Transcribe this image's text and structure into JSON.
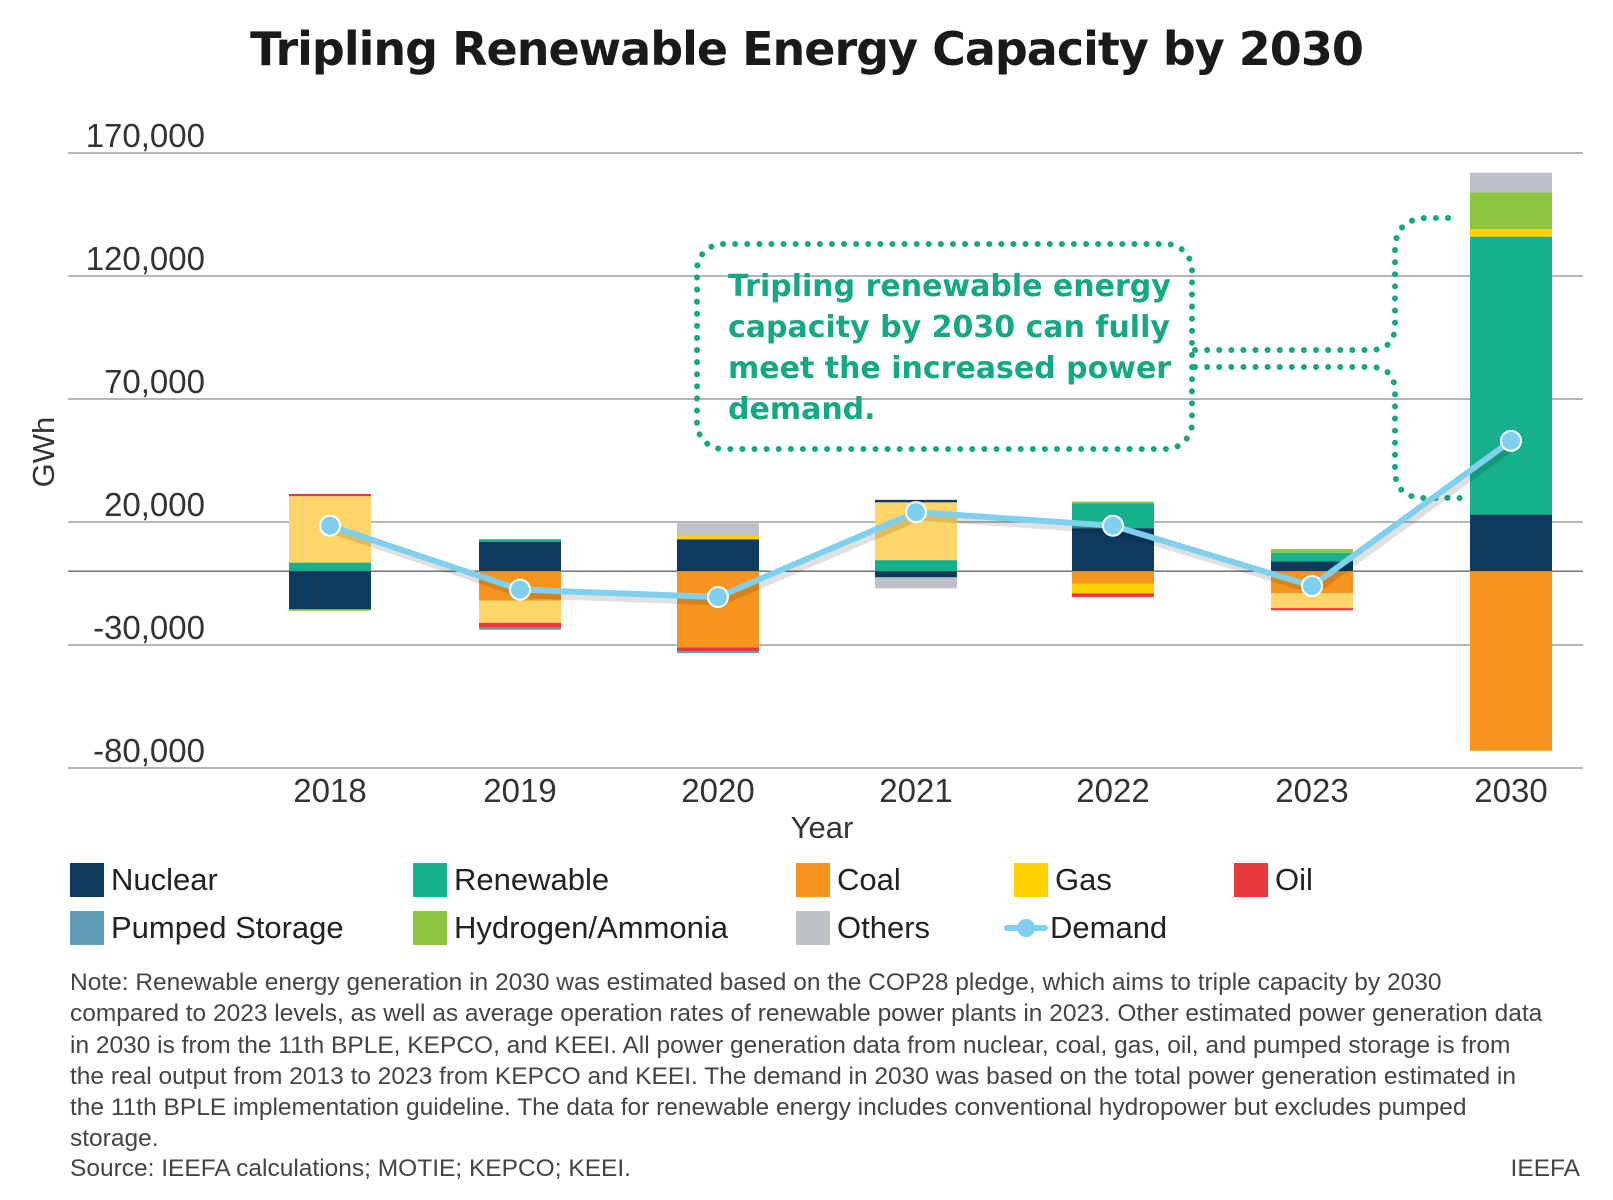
{
  "title": "Tripling Renewable Energy Capacity by 2030",
  "callout": "Tripling renewable energy capacity by 2030 can fully meet the increased power demand.",
  "colors": {
    "Nuclear": "#0e3a5f",
    "Renewable": "#16b08c",
    "Coal": "#f7941d",
    "Gas": "#ffd200",
    "Oil": "#e8393d",
    "Pumped Storage": "#5e9cb6",
    "Hydrogen/Ammonia": "#8cc63f",
    "Others": "#bcc2c8",
    "Demand": "#7fd0ee",
    "LightGas": "#fdd568",
    "callout": "#14a883"
  },
  "legend": [
    {
      "label": "Nuclear",
      "color": "#0e3a5f"
    },
    {
      "label": "Renewable",
      "color": "#16b08c"
    },
    {
      "label": "Coal",
      "color": "#f7941d"
    },
    {
      "label": "Gas",
      "color": "#ffd200"
    },
    {
      "label": "Oil",
      "color": "#e8393d"
    },
    {
      "label": "Pumped Storage",
      "color": "#5e9cb6"
    },
    {
      "label": "Hydrogen/Ammonia",
      "color": "#8cc63f"
    },
    {
      "label": "Others",
      "color": "#bcc2c8"
    },
    {
      "label": "Demand",
      "color": "#7fd0ee"
    }
  ],
  "note": "Note: Renewable energy generation in 2030 was estimated based on the COP28 pledge, which aims to triple capacity by 2030 compared to 2023 levels, as well as average operation rates of renewable power plants in 2023. Other estimated power generation data in 2030 is from the 11th BPLE, KEPCO, and KEEI. All power generation data from nuclear, coal, gas, oil, and pumped storage is from the real output from 2013 to 2023 from KEPCO and KEEI. The demand in 2030 was based on the total power generation estimated in the 11th BPLE implementation guideline. The data for renewable energy includes conventional hydropower but excludes pumped storage.",
  "source": "Source: IEEFA calculations; MOTIE; KEPCO; KEEI.",
  "brand": "IEEFA",
  "chart_data": {
    "type": "bar",
    "stacked": true,
    "title": "Tripling Renewable Energy Capacity by 2030",
    "xlabel": "Year",
    "ylabel": "GWh",
    "ylim": [
      -80000,
      170000
    ],
    "yticks": [
      "170,000",
      "120,000",
      "70,000",
      "20,000",
      "-30,000",
      "-80,000"
    ],
    "ytick_values": [
      170000,
      120000,
      70000,
      20000,
      -30000,
      -80000
    ],
    "grid": true,
    "legend_position": "bottom",
    "categories": [
      "2018",
      "2019",
      "2020",
      "2021",
      "2022",
      "2023",
      "2030"
    ],
    "stacks": [
      {
        "year": "2018",
        "segments": [
          {
            "series": "Renewable",
            "value": 3500
          },
          {
            "series": "Gas",
            "value": 27000
          },
          {
            "series": "Oil",
            "value": 900
          },
          {
            "series": "Nuclear",
            "value": -15500
          },
          {
            "series": "Hydrogen/Ammonia",
            "value": -600
          }
        ]
      },
      {
        "year": "2019",
        "segments": [
          {
            "series": "Nuclear",
            "value": 12000
          },
          {
            "series": "Renewable",
            "value": 1000
          },
          {
            "series": "Coal",
            "value": -12000
          },
          {
            "series": "Gas",
            "value": -9000
          },
          {
            "series": "Oil",
            "value": -2000
          },
          {
            "series": "Pumped Storage",
            "value": -800
          }
        ]
      },
      {
        "year": "2020",
        "segments": [
          {
            "series": "Nuclear",
            "value": 13000
          },
          {
            "series": "Gas",
            "value": 1500
          },
          {
            "series": "Others",
            "value": 5000
          },
          {
            "series": "Coal",
            "value": -31000
          },
          {
            "series": "Oil",
            "value": -1500
          },
          {
            "series": "Pumped Storage",
            "value": -800
          }
        ]
      },
      {
        "year": "2021",
        "segments": [
          {
            "series": "Nuclear",
            "value": -2500
          },
          {
            "series": "Renewable",
            "value": 4500
          },
          {
            "series": "Gas",
            "value": 23500
          },
          {
            "series": "Nuclear",
            "value": 1000
          },
          {
            "series": "Others",
            "value": -4500
          }
        ]
      },
      {
        "year": "2022",
        "segments": [
          {
            "series": "Nuclear",
            "value": 17500
          },
          {
            "series": "Renewable",
            "value": 10000
          },
          {
            "series": "Hydrogen/Ammonia",
            "value": 800
          },
          {
            "series": "Coal",
            "value": -5000
          },
          {
            "series": "Gas",
            "value": -4000
          },
          {
            "series": "Oil",
            "value": -1500
          }
        ]
      },
      {
        "year": "2023",
        "segments": [
          {
            "series": "Nuclear",
            "value": 4000
          },
          {
            "series": "Renewable",
            "value": 3500
          },
          {
            "series": "Hydrogen/Ammonia",
            "value": 1500
          },
          {
            "series": "Coal",
            "value": -9000
          },
          {
            "series": "Gas",
            "value": -6000
          },
          {
            "series": "Oil",
            "value": -900
          }
        ]
      },
      {
        "year": "2030",
        "segments": [
          {
            "series": "Nuclear",
            "value": 23000
          },
          {
            "series": "Renewable",
            "value": 113000
          },
          {
            "series": "Gas",
            "value": 3000
          },
          {
            "series": "Hydrogen/Ammonia",
            "value": 15000
          },
          {
            "series": "Others",
            "value": 8000
          },
          {
            "series": "Coal",
            "value": -73000
          }
        ]
      }
    ],
    "demand": {
      "name": "Demand",
      "values": [
        18500,
        -7500,
        -10500,
        24000,
        18500,
        -6000,
        53000
      ]
    },
    "annotation": "Tripling renewable energy capacity by 2030 can fully meet the increased power demand."
  }
}
